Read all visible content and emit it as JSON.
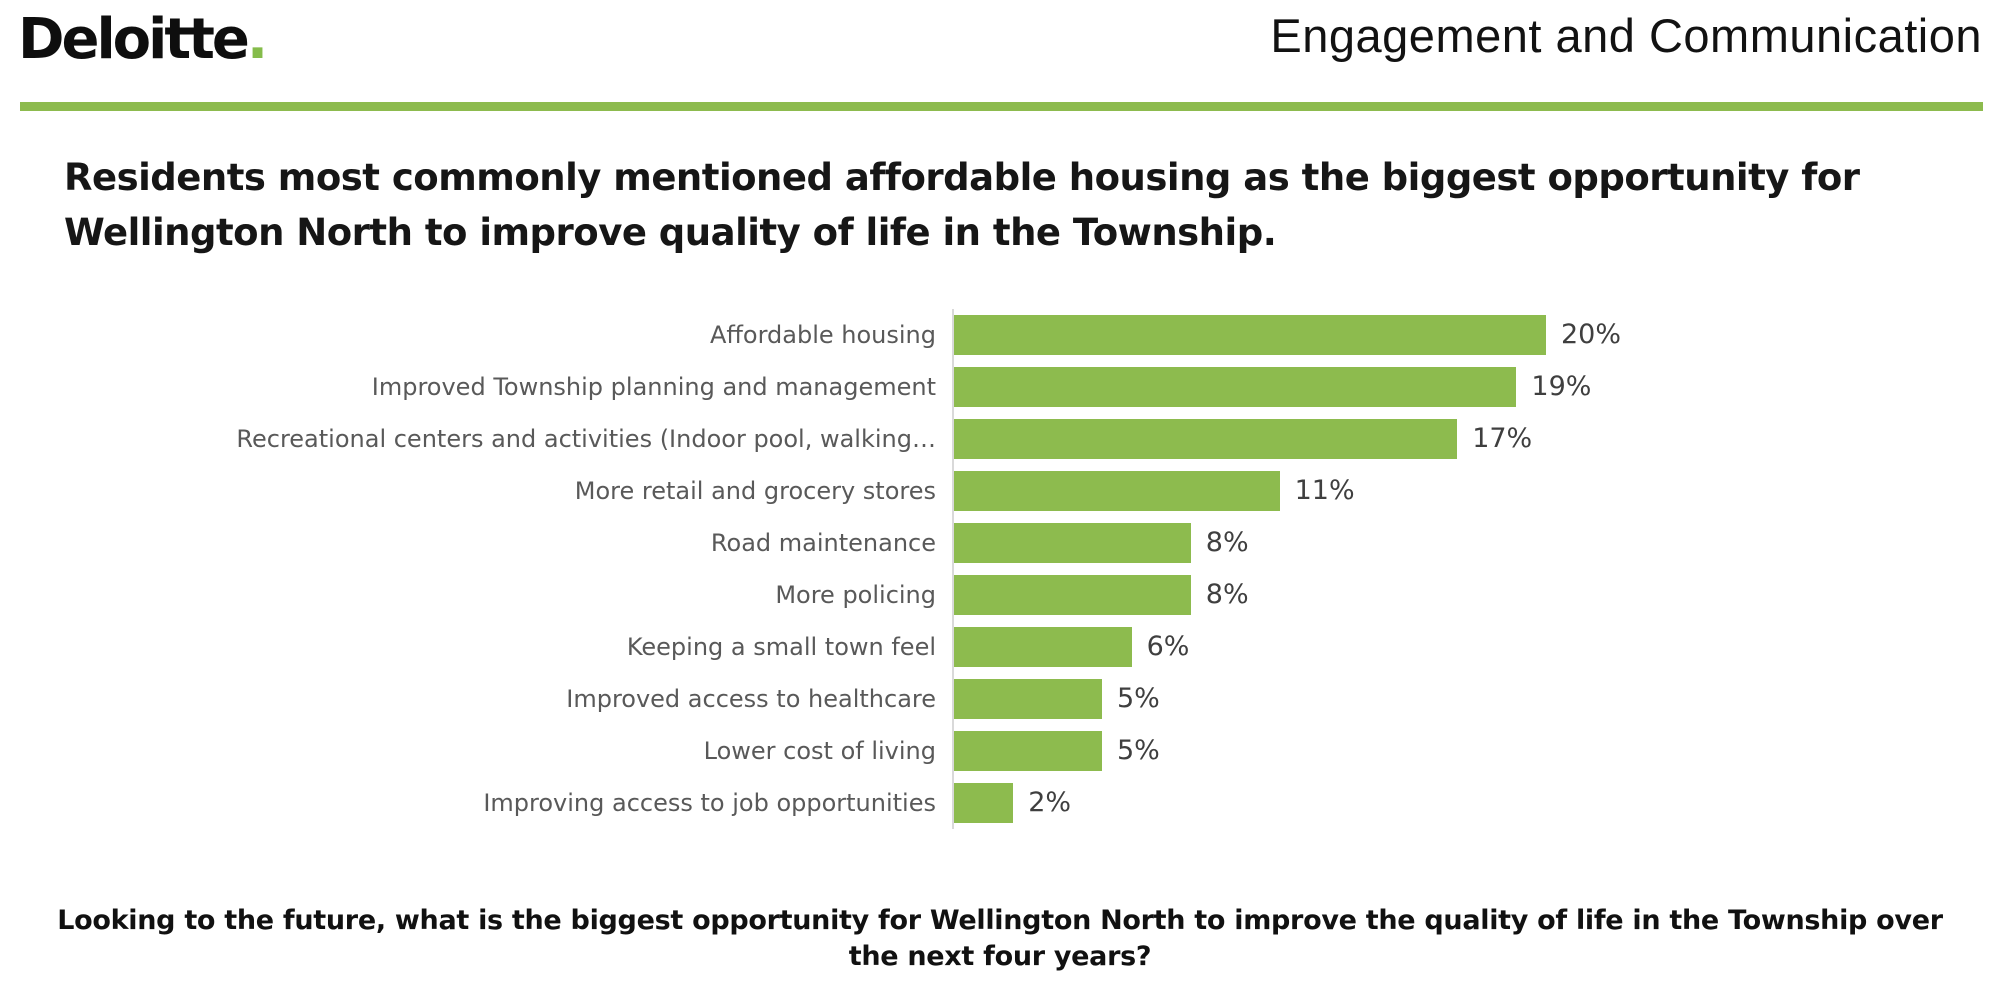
{
  "header": {
    "logo_text": "Deloitte",
    "logo_dot": ".",
    "title": "Engagement and Communication"
  },
  "headline": "Residents most commonly mentioned affordable housing as the biggest opportunity for Wellington North to improve quality of life in the Township.",
  "chart_data": {
    "type": "bar",
    "orientation": "horizontal",
    "title": "",
    "categories": [
      "Affordable housing",
      "Improved Township planning and management",
      "Recreational centers and activities (Indoor pool, walking…",
      "More retail and grocery stores",
      "Road maintenance",
      "More policing",
      "Keeping a small town feel",
      "Improved access to healthcare",
      "Lower cost of living",
      "Improving access to job opportunities"
    ],
    "values": [
      20,
      19,
      17,
      11,
      8,
      8,
      6,
      5,
      5,
      2
    ],
    "value_labels": [
      "20%",
      "19%",
      "17%",
      "11%",
      "8%",
      "8%",
      "6%",
      "5%",
      "5%",
      "2%"
    ],
    "xlim": [
      0,
      20
    ],
    "grid": false,
    "legend": false,
    "data_label_position": "outside-end",
    "bar_color": "#8dbb4e"
  },
  "footer": {
    "question": "Looking to the future, what is the biggest opportunity for Wellington North to improve the quality of life in the Township over the next four years?"
  },
  "colors": {
    "accent_green": "#8dbb4e",
    "logo_dot_green": "#85bc4b",
    "category_label_gray": "#595959",
    "value_label_gray": "#3f3f3f",
    "heading_black": "#161616",
    "axis_line_gray": "#d9d9d9"
  }
}
